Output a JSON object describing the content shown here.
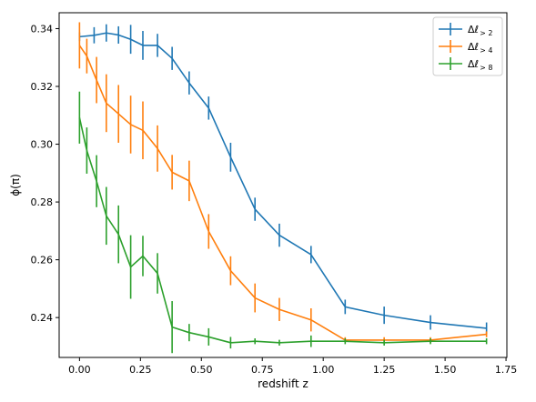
{
  "chart_data": {
    "type": "line",
    "title": "",
    "xlabel": "redshift z",
    "ylabel": "ϕ(π)",
    "xlim": [
      -0.0835,
      1.7535
    ],
    "ylim": [
      0.2262,
      0.3455
    ],
    "xticks": [
      0.0,
      0.25,
      0.5,
      0.75,
      1.0,
      1.25,
      1.5,
      1.75
    ],
    "xtick_labels": [
      "0.00",
      "0.25",
      "0.50",
      "0.75",
      "1.00",
      "1.25",
      "1.50",
      "1.75"
    ],
    "yticks": [
      0.24,
      0.26,
      0.28,
      0.3,
      0.32,
      0.34
    ],
    "ytick_labels": [
      "0.24",
      "0.26",
      "0.28",
      "0.30",
      "0.32",
      "0.34"
    ],
    "grid": false,
    "legend_position": "top-right",
    "series": [
      {
        "name": "Δℓ>2",
        "legend_main": "Δℓ",
        "legend_sub": "> 2",
        "color": "#1f77b4",
        "x": [
          0.0,
          0.06,
          0.11,
          0.16,
          0.21,
          0.26,
          0.32,
          0.38,
          0.45,
          0.53,
          0.62,
          0.72,
          0.82,
          0.95,
          1.09,
          1.25,
          1.44,
          1.67
        ],
        "y": [
          0.3372,
          0.3377,
          0.3385,
          0.3378,
          0.3363,
          0.3342,
          0.3342,
          0.3297,
          0.3212,
          0.3125,
          0.2955,
          0.2775,
          0.2685,
          0.2618,
          0.2437,
          0.2408,
          0.2383,
          0.2363
        ],
        "yerr": [
          0.0015,
          0.0028,
          0.003,
          0.003,
          0.005,
          0.005,
          0.004,
          0.004,
          0.004,
          0.004,
          0.005,
          0.004,
          0.004,
          0.003,
          0.0025,
          0.003,
          0.0025,
          0.002
        ]
      },
      {
        "name": "Δℓ>4",
        "legend_main": "Δℓ",
        "legend_sub": "> 4",
        "color": "#ff7f0e",
        "x": [
          0.0,
          0.03,
          0.07,
          0.11,
          0.16,
          0.21,
          0.26,
          0.32,
          0.38,
          0.45,
          0.53,
          0.62,
          0.72,
          0.82,
          0.95,
          1.09,
          1.25,
          1.44,
          1.67
        ],
        "y": [
          0.3342,
          0.3305,
          0.3222,
          0.3142,
          0.3105,
          0.3068,
          0.3048,
          0.2985,
          0.2903,
          0.2873,
          0.2698,
          0.2562,
          0.2468,
          0.2428,
          0.2392,
          0.2322,
          0.2322,
          0.2322,
          0.2342
        ],
        "yerr": [
          0.008,
          0.006,
          0.008,
          0.01,
          0.01,
          0.01,
          0.01,
          0.008,
          0.006,
          0.007,
          0.006,
          0.005,
          0.005,
          0.004,
          0.004,
          0.001,
          0.001,
          0.001,
          0.001
        ]
      },
      {
        "name": "Δℓ>8",
        "legend_main": "Δℓ",
        "legend_sub": "> 8",
        "color": "#2ca02c",
        "x": [
          0.0,
          0.03,
          0.07,
          0.11,
          0.16,
          0.21,
          0.26,
          0.32,
          0.38,
          0.45,
          0.53,
          0.62,
          0.72,
          0.82,
          0.95,
          1.09,
          1.25,
          1.44,
          1.67
        ],
        "y": [
          0.3092,
          0.2978,
          0.2872,
          0.2752,
          0.2688,
          0.2575,
          0.2613,
          0.2553,
          0.2367,
          0.2348,
          0.2333,
          0.2313,
          0.2318,
          0.2313,
          0.2318,
          0.2318,
          0.2313,
          0.2318,
          0.2318
        ],
        "yerr": [
          0.009,
          0.008,
          0.009,
          0.01,
          0.01,
          0.011,
          0.007,
          0.007,
          0.009,
          0.003,
          0.003,
          0.002,
          0.001,
          0.001,
          0.002,
          0.001,
          0.001,
          0.001,
          0.001
        ]
      }
    ]
  }
}
